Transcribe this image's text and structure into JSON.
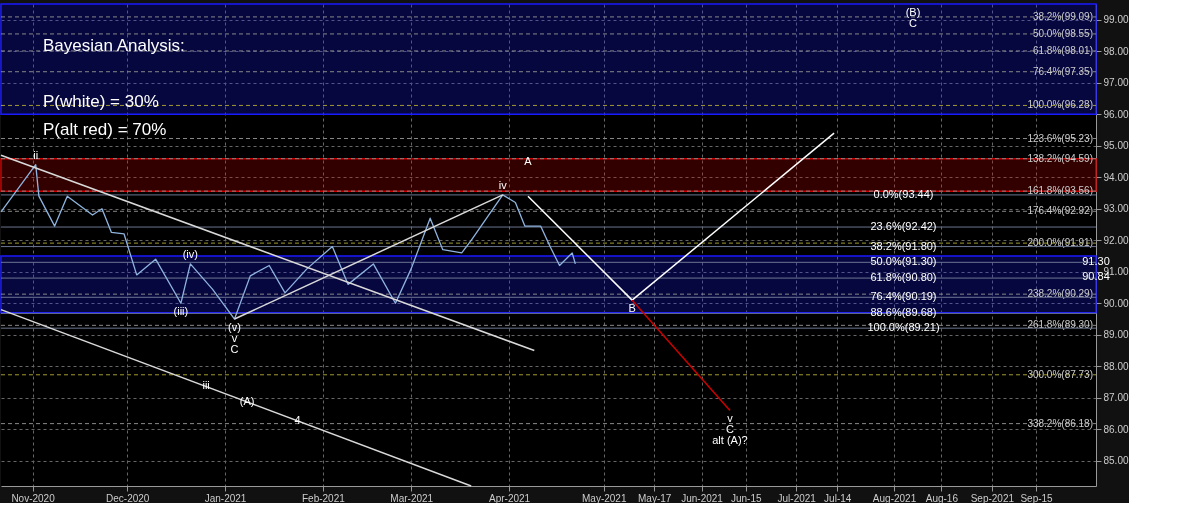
{
  "chart_data": {
    "type": "line",
    "title": "Bayesian Analysis:",
    "x": [
      "2020-10-22",
      "2020-11-02",
      "2020-11-03",
      "2020-11-08",
      "2020-11-12",
      "2020-11-20",
      "2020-11-23",
      "2020-11-26",
      "2020-11-30",
      "2020-12-04",
      "2020-12-10",
      "2020-12-18",
      "2020-12-21",
      "2020-12-28",
      "2021-01-04",
      "2021-01-09",
      "2021-01-15",
      "2021-01-20",
      "2021-01-27",
      "2021-02-04",
      "2021-02-09",
      "2021-02-17",
      "2021-02-24",
      "2021-03-01",
      "2021-03-07",
      "2021-03-11",
      "2021-03-17",
      "2021-03-20",
      "2021-03-30",
      "2021-04-03",
      "2021-04-06",
      "2021-04-11",
      "2021-04-14",
      "2021-04-17",
      "2021-04-21",
      "2021-04-22"
    ],
    "series": [
      {
        "color": "#8fb4e0",
        "values": [
          92.9,
          94.4,
          93.4,
          92.45,
          93.4,
          92.8,
          93.0,
          92.25,
          92.2,
          90.9,
          91.4,
          90.0,
          91.25,
          90.45,
          89.5,
          90.87,
          91.2,
          90.33,
          91.1,
          91.8,
          90.6,
          91.25,
          90.0,
          91.1,
          92.7,
          91.7,
          91.6,
          92.0,
          93.44,
          93.2,
          92.45,
          92.45,
          91.8,
          91.2,
          91.6,
          91.25
        ]
      },
      {
        "color": "#ffffff",
        "x": [
          "2021-04-07",
          "2021-05-10"
        ],
        "values": [
          93.4,
          90.1
        ]
      },
      {
        "color": "#ffffff",
        "x": [
          "2021-05-10",
          "2021-07-13"
        ],
        "values": [
          90.1,
          95.4
        ]
      },
      {
        "color": "#cc0000",
        "x": [
          "2021-05-10",
          "2021-06-10"
        ],
        "values": [
          90.1,
          86.6
        ]
      },
      {
        "color": "#d9d9d9",
        "x": [
          "2020-10-22",
          "2021-04-09"
        ],
        "values": [
          94.7,
          88.5
        ]
      },
      {
        "color": "#d9d9d9",
        "x": [
          "2020-10-22",
          "2021-03-20"
        ],
        "values": [
          89.8,
          84.2
        ]
      },
      {
        "color": "#d9d9d9",
        "x": [
          "2021-01-04",
          "2021-03-30"
        ],
        "values": [
          89.5,
          93.44
        ]
      }
    ],
    "xlim": [
      "2020-10-22",
      "2021-10-04"
    ],
    "xticks": [
      {
        "value": "2020-11-01",
        "label": "Nov-2020"
      },
      {
        "value": "2020-12-01",
        "label": "Dec-2020"
      },
      {
        "value": "2021-01-01",
        "label": "Jan-2021"
      },
      {
        "value": "2021-02-01",
        "label": "Feb-2021"
      },
      {
        "value": "2021-03-01",
        "label": "Mar-2021"
      },
      {
        "value": "2021-04-01",
        "label": "Apr-2021"
      },
      {
        "value": "2021-05-01",
        "label": "May-2021"
      },
      {
        "value": "2021-05-17",
        "label": "May-17"
      },
      {
        "value": "2021-06-01",
        "label": "Jun-2021"
      },
      {
        "value": "2021-06-15",
        "label": "Jun-15"
      },
      {
        "value": "2021-07-01",
        "label": "Jul-2021"
      },
      {
        "value": "2021-07-14",
        "label": "Jul-14"
      },
      {
        "value": "2021-08-01",
        "label": "Aug-2021"
      },
      {
        "value": "2021-08-16",
        "label": "Aug-16"
      },
      {
        "value": "2021-09-01",
        "label": "Sep-2021"
      },
      {
        "value": "2021-09-15",
        "label": "Sep-15"
      }
    ],
    "ylim": [
      84.2,
      99.5
    ],
    "yticks": [
      {
        "value": 85,
        "label": "85.00"
      },
      {
        "value": 86,
        "label": "86.00"
      },
      {
        "value": 87,
        "label": "87.00"
      },
      {
        "value": 88,
        "label": "88.00"
      },
      {
        "value": 89,
        "label": "89.00"
      },
      {
        "value": 90,
        "label": "90.00"
      },
      {
        "value": 91,
        "label": "91.00"
      },
      {
        "value": 92,
        "label": "92.00"
      },
      {
        "value": 93,
        "label": "93.00"
      },
      {
        "value": 94,
        "label": "94.00"
      },
      {
        "value": 95,
        "label": "95.00"
      },
      {
        "value": 96,
        "label": "96.00"
      },
      {
        "value": 97,
        "label": "97.00"
      },
      {
        "value": 98,
        "label": "98.00"
      },
      {
        "value": 99,
        "label": "99.00"
      }
    ],
    "grid": true,
    "marker": "none",
    "line_style": "solid",
    "bands": [
      {
        "axis": "y",
        "from": 93.56,
        "to": 94.59,
        "color": "#cc0000"
      },
      {
        "axis": "y",
        "from": 96.0,
        "to": 99.5,
        "color": "#1a1aff"
      },
      {
        "axis": "y",
        "from": 89.7,
        "to": 91.5,
        "color": "#1a1aff"
      }
    ],
    "ref_lines": [
      {
        "axis": "y",
        "value": 99.09,
        "label": "38.2%(99.09)",
        "color": "#888888",
        "line_style": "dashed"
      },
      {
        "axis": "y",
        "value": 98.55,
        "label": "50.0%(98.55)",
        "color": "#888888",
        "line_style": "dashed"
      },
      {
        "axis": "y",
        "value": 98.01,
        "label": "61.8%(98.01)",
        "color": "#888888",
        "line_style": "dashed"
      },
      {
        "axis": "y",
        "value": 97.35,
        "label": "76.4%(97.35)",
        "color": "#888888",
        "line_style": "dashed"
      },
      {
        "axis": "y",
        "value": 96.28,
        "label": "100.0%(96.28)",
        "color": "#a09a30",
        "line_style": "dashed"
      },
      {
        "axis": "y",
        "value": 95.23,
        "label": "123.6%(95.23)",
        "color": "#888888",
        "line_style": "dashed"
      },
      {
        "axis": "y",
        "value": 94.59,
        "label": "138.2%(94.59)",
        "color": "#888888",
        "line_style": "dashed"
      },
      {
        "axis": "y",
        "value": 93.56,
        "label": "161.8%(93.56)",
        "color": "#888888",
        "line_style": "dashed"
      },
      {
        "axis": "y",
        "value": 92.92,
        "label": "176.4%(92.92)",
        "color": "#888888",
        "line_style": "dashed"
      },
      {
        "axis": "y",
        "value": 91.91,
        "label": "200.0%(91.91)",
        "color": "#a09a30",
        "line_style": "dashed"
      },
      {
        "axis": "y",
        "value": 90.29,
        "label": "238.2%(90.29)",
        "color": "#888888",
        "line_style": "dashed"
      },
      {
        "axis": "y",
        "value": 89.3,
        "label": "261.8%(89.30)",
        "color": "#888888",
        "line_style": "dashed"
      },
      {
        "axis": "y",
        "value": 87.73,
        "label": "300.0%(87.73)",
        "color": "#a09a30",
        "line_style": "dashed"
      },
      {
        "axis": "y",
        "value": 86.18,
        "label": "338.2%(86.18)",
        "color": "#888888",
        "line_style": "dashed"
      },
      {
        "axis": "y",
        "value": 93.44,
        "color": "#6b7590",
        "line_style": "solid"
      },
      {
        "axis": "y",
        "value": 92.42,
        "color": "#6b7590",
        "line_style": "solid"
      },
      {
        "axis": "y",
        "value": 91.8,
        "color": "#6b7590",
        "line_style": "solid"
      },
      {
        "axis": "y",
        "value": 91.3,
        "color": "#6b7590",
        "line_style": "solid"
      },
      {
        "axis": "y",
        "value": 90.8,
        "color": "#6b7590",
        "line_style": "solid"
      },
      {
        "axis": "y",
        "value": 90.19,
        "color": "#6b7590",
        "line_style": "solid"
      },
      {
        "axis": "y",
        "value": 89.68,
        "color": "#6b7590",
        "line_style": "solid"
      },
      {
        "axis": "y",
        "value": 89.21,
        "color": "#6b7590",
        "line_style": "solid"
      }
    ],
    "annotations": [
      "P(white) = 30%",
      "P(alt red) = 70%",
      {
        "text": "0.0%(93.44)",
        "x": "2021-08-04",
        "y": 93.44
      },
      {
        "text": "23.6%(92.42)",
        "x": "2021-08-04",
        "y": 92.42
      },
      {
        "text": "38.2%(91.80)",
        "x": "2021-08-04",
        "y": 91.8
      },
      {
        "text": "50.0%(91.30)",
        "x": "2021-08-04",
        "y": 91.3
      },
      {
        "text": "61.8%(90.80)",
        "x": "2021-08-04",
        "y": 90.8
      },
      {
        "text": "76.4%(90.19)",
        "x": "2021-08-04",
        "y": 90.19
      },
      {
        "text": "88.6%(89.68)",
        "x": "2021-08-04",
        "y": 89.68
      },
      {
        "text": "100.0%(89.21)",
        "x": "2021-08-04",
        "y": 89.21
      },
      {
        "text": "91.30",
        "x": "2021-10-04",
        "y": 91.3
      },
      {
        "text": "90.84",
        "x": "2021-10-04",
        "y": 90.84
      },
      {
        "text": "ii",
        "x": "2020-11-02",
        "y": 94.4
      },
      {
        "text": "(iv)",
        "x": "2020-12-21",
        "y": 91.25
      },
      {
        "text": "(iii)",
        "x": "2020-12-18",
        "y": 90.0
      },
      {
        "text": "(v)",
        "x": "2021-01-04",
        "y": 89.5
      },
      {
        "text": "v",
        "x": "2021-01-04",
        "y": 89.5
      },
      {
        "text": "C",
        "x": "2021-01-04",
        "y": 89.5
      },
      {
        "text": "iii",
        "x": "2020-12-26",
        "y": 87.36
      },
      {
        "text": "(A)",
        "x": "2021-01-08",
        "y": 86.87
      },
      {
        "text": "4",
        "x": "2021-01-24",
        "y": 86.27
      },
      {
        "text": "iv",
        "x": "2021-03-30",
        "y": 93.44
      },
      {
        "text": "A",
        "x": "2021-04-07",
        "y": 94.47
      },
      {
        "text": "B",
        "x": "2021-05-10",
        "y": 90.1
      },
      {
        "text": "v",
        "x": "2021-06-10",
        "y": 86.6
      },
      {
        "text": "C",
        "x": "2021-06-10",
        "y": 86.6
      },
      {
        "text": "alt (A)?",
        "x": "2021-06-10",
        "y": 86.6
      },
      {
        "text": "(B)",
        "x": "2021-08-07",
        "y": 99.5
      },
      {
        "text": "C",
        "x": "2021-08-07",
        "y": 99.5
      }
    ]
  }
}
